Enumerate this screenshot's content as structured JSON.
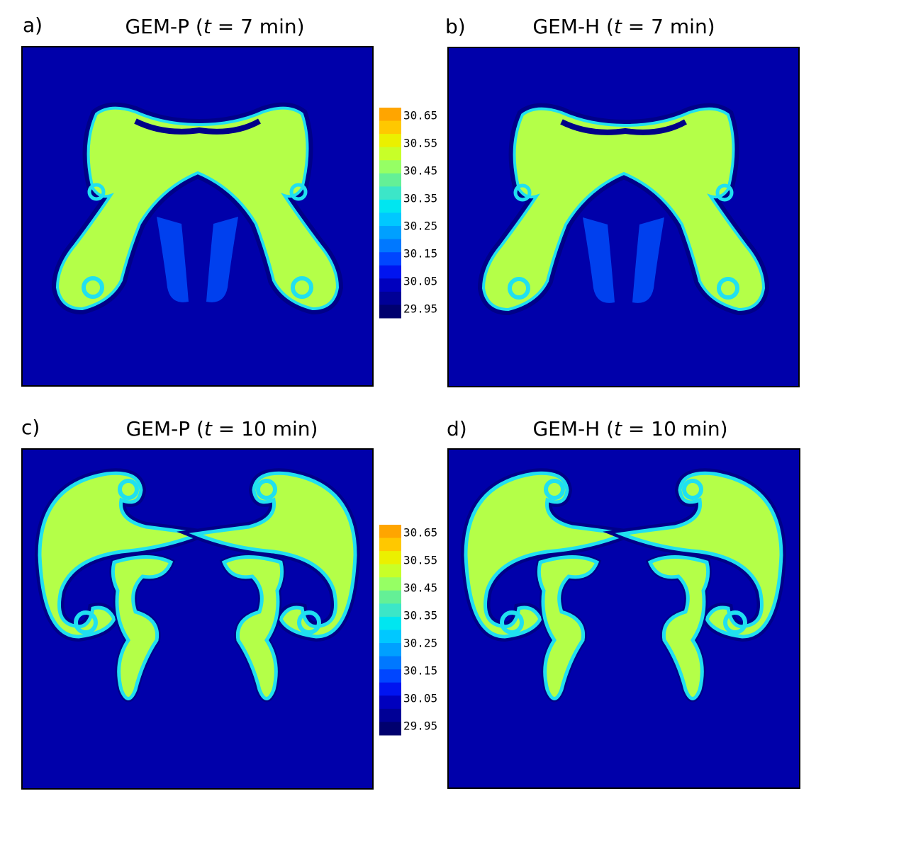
{
  "panels": [
    {
      "label": "a)",
      "title": {
        "model": "GEM-P (",
        "var": "t",
        "time": " = 7 min)"
      }
    },
    {
      "label": "b)",
      "title": {
        "model": "GEM-H (",
        "var": "t",
        "time": " = 7 min)"
      }
    },
    {
      "label": "c)",
      "title": {
        "model": "GEM-P (",
        "var": "t",
        "time": " = 10 min)"
      }
    },
    {
      "label": "d)",
      "title": {
        "model": "GEM-H (",
        "var": "t",
        "time": " = 10 min)"
      }
    }
  ],
  "colorbars": [
    {
      "ticks": [
        30.65,
        30.55,
        30.45,
        30.35,
        30.25,
        30.15,
        30.05,
        29.95
      ]
    },
    {
      "ticks": [
        30.65,
        30.55,
        30.45,
        30.35,
        30.25,
        30.15,
        30.05,
        29.95
      ]
    }
  ]
}
